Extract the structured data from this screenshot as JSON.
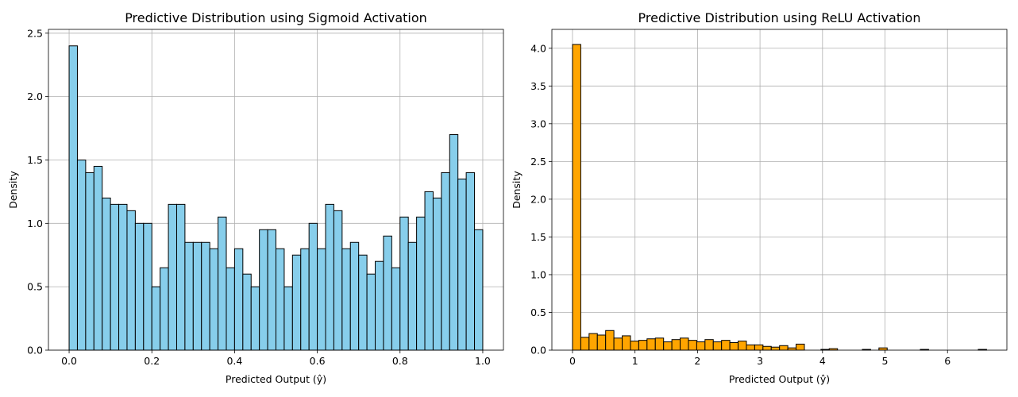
{
  "chart_data": [
    {
      "type": "bar",
      "title": "Predictive Distribution using Sigmoid Activation",
      "xlabel": "Predicted Output (ŷ)",
      "ylabel": "Density",
      "xlim": [
        -0.05,
        1.05
      ],
      "ylim": [
        0,
        2.53
      ],
      "xticks": [
        0.0,
        0.2,
        0.4,
        0.6,
        0.8,
        1.0
      ],
      "xtick_labels": [
        "0.0",
        "0.2",
        "0.4",
        "0.6",
        "0.8",
        "1.0"
      ],
      "yticks": [
        0.0,
        0.5,
        1.0,
        1.5,
        2.0,
        2.5
      ],
      "ytick_labels": [
        "0.0",
        "0.5",
        "1.0",
        "1.5",
        "2.0",
        "2.5"
      ],
      "grid": true,
      "color": "#87CEEB",
      "bin_start": 0.0,
      "bin_width": 0.02,
      "values": [
        2.4,
        1.5,
        1.4,
        1.45,
        1.2,
        1.15,
        1.15,
        1.1,
        1.0,
        1.0,
        0.5,
        0.65,
        1.15,
        1.15,
        0.85,
        0.85,
        0.85,
        0.8,
        1.05,
        0.65,
        0.8,
        0.6,
        0.5,
        0.95,
        0.95,
        0.8,
        0.5,
        0.75,
        0.8,
        1.0,
        0.8,
        1.15,
        1.1,
        0.8,
        0.85,
        0.75,
        0.6,
        0.7,
        0.9,
        0.65,
        1.05,
        0.85,
        1.05,
        1.25,
        1.2,
        1.4,
        1.7,
        1.35,
        1.4,
        0.95
      ]
    },
    {
      "type": "bar",
      "title": "Predictive Distribution using ReLU Activation",
      "xlabel": "Predicted Output (ŷ)",
      "ylabel": "Density",
      "xlim": [
        -0.33,
        6.95
      ],
      "ylim": [
        0,
        4.25
      ],
      "xticks": [
        0,
        1,
        2,
        3,
        4,
        5,
        6
      ],
      "xtick_labels": [
        "0",
        "1",
        "2",
        "3",
        "4",
        "5",
        "6"
      ],
      "yticks": [
        0.0,
        0.5,
        1.0,
        1.5,
        2.0,
        2.5,
        3.0,
        3.5,
        4.0
      ],
      "ytick_labels": [
        "0.0",
        "0.5",
        "1.0",
        "1.5",
        "2.0",
        "2.5",
        "3.0",
        "3.5",
        "4.0"
      ],
      "grid": true,
      "color": "#FFA500",
      "bin_start": 0.0,
      "bin_width": 0.1325,
      "values": [
        4.05,
        0.17,
        0.22,
        0.2,
        0.26,
        0.16,
        0.19,
        0.12,
        0.13,
        0.15,
        0.16,
        0.11,
        0.14,
        0.16,
        0.13,
        0.11,
        0.14,
        0.11,
        0.13,
        0.1,
        0.12,
        0.07,
        0.07,
        0.05,
        0.04,
        0.06,
        0.03,
        0.08,
        0.0,
        0.0,
        0.01,
        0.02,
        0.0,
        0.0,
        0.0,
        0.01,
        0.0,
        0.03,
        0.0,
        0.0,
        0.0,
        0.0,
        0.01,
        0.0,
        0.0,
        0.0,
        0.0,
        0.0,
        0.0,
        0.01
      ]
    }
  ]
}
